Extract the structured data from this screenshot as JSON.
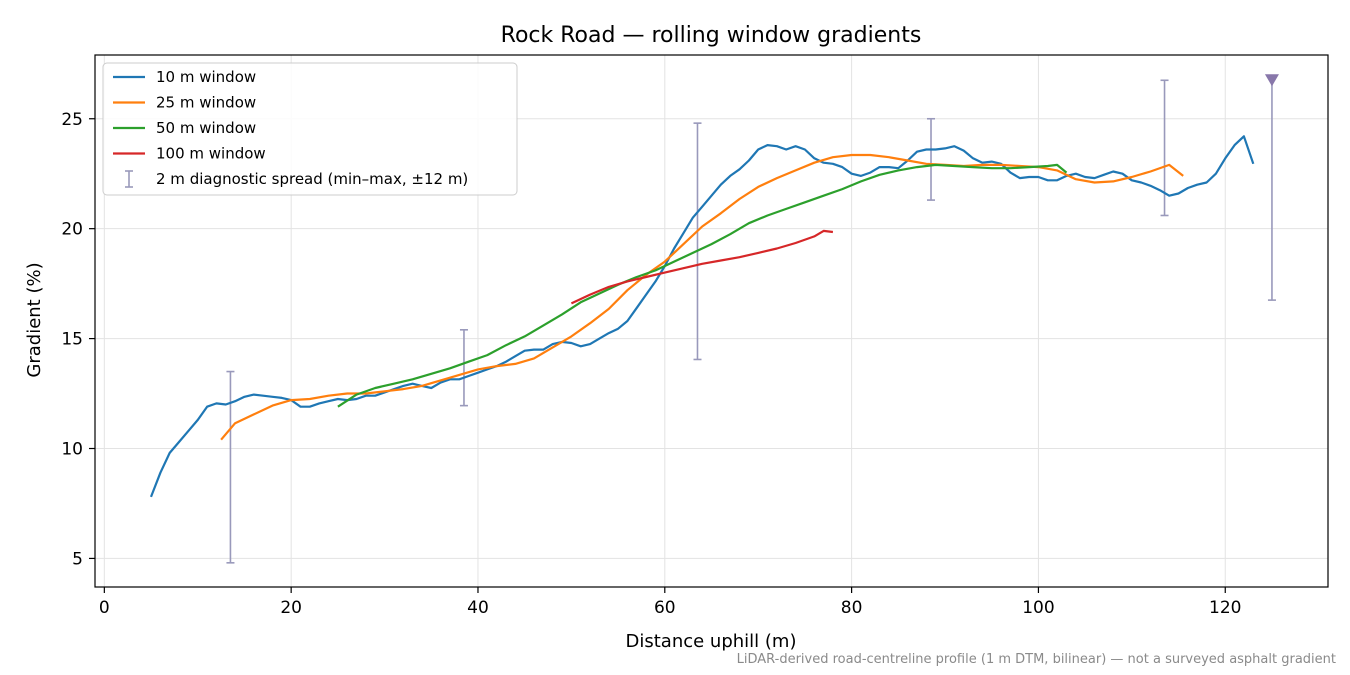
{
  "chart_data": {
    "type": "line",
    "title": "Rock Road — rolling window gradients",
    "xlabel": "Distance uphill (m)",
    "ylabel": "Gradient (%)",
    "xlim": [
      -1,
      131
    ],
    "ylim": [
      3.7,
      27.9
    ],
    "x_ticks": [
      0,
      20,
      40,
      60,
      80,
      100,
      120
    ],
    "y_ticks": [
      5,
      10,
      15,
      20,
      25
    ],
    "grid": true,
    "legend_position": "top-left",
    "series": [
      {
        "name": "10 m window",
        "color": "#1f77b4",
        "x": [
          5,
          6,
          7,
          8,
          9,
          10,
          11,
          12,
          13,
          14,
          15,
          16,
          17,
          18,
          19,
          20,
          21,
          22,
          23,
          24,
          25,
          26,
          27,
          28,
          29,
          30,
          31,
          32,
          33,
          34,
          35,
          36,
          37,
          38,
          39,
          40,
          41,
          42,
          43,
          44,
          45,
          46,
          47,
          48,
          49,
          50,
          51,
          52,
          53,
          54,
          55,
          56,
          57,
          58,
          59,
          60,
          61,
          62,
          63,
          64,
          65,
          66,
          67,
          68,
          69,
          70,
          71,
          72,
          73,
          74,
          75,
          76,
          77,
          78,
          79,
          80,
          81,
          82,
          83,
          84,
          85,
          86,
          87,
          88,
          89,
          90,
          91,
          92,
          93,
          94,
          95,
          96,
          97,
          98,
          99,
          100,
          101,
          102,
          103,
          104,
          105,
          106,
          107,
          108,
          109,
          110,
          111,
          112,
          113,
          114,
          115,
          116,
          117,
          118,
          119,
          120,
          121,
          122,
          123
        ],
        "y": [
          7.8,
          8.9,
          9.8,
          10.3,
          10.8,
          11.3,
          11.9,
          12.05,
          12.0,
          12.15,
          12.35,
          12.45,
          12.4,
          12.35,
          12.3,
          12.2,
          11.9,
          11.9,
          12.05,
          12.15,
          12.25,
          12.2,
          12.25,
          12.4,
          12.4,
          12.55,
          12.7,
          12.85,
          12.95,
          12.85,
          12.75,
          13.0,
          13.15,
          13.15,
          13.3,
          13.45,
          13.6,
          13.75,
          13.95,
          14.2,
          14.45,
          14.5,
          14.5,
          14.75,
          14.85,
          14.8,
          14.65,
          14.75,
          15.0,
          15.25,
          15.45,
          15.8,
          16.4,
          17.0,
          17.6,
          18.3,
          19.1,
          19.8,
          20.5,
          21.0,
          21.5,
          22.0,
          22.4,
          22.7,
          23.1,
          23.6,
          23.8,
          23.75,
          23.6,
          23.75,
          23.6,
          23.2,
          23.0,
          22.95,
          22.8,
          22.5,
          22.4,
          22.55,
          22.8,
          22.8,
          22.75,
          23.1,
          23.5,
          23.6,
          23.6,
          23.65,
          23.75,
          23.55,
          23.2,
          23.0,
          23.05,
          22.95,
          22.55,
          22.3,
          22.35,
          22.35,
          22.2,
          22.2,
          22.4,
          22.5,
          22.35,
          22.3,
          22.45,
          22.6,
          22.5,
          22.2,
          22.1,
          21.95,
          21.75,
          21.5,
          21.6,
          21.85,
          22.0,
          22.1,
          22.5,
          23.2,
          23.8,
          24.2,
          22.95
        ]
      },
      {
        "name": "25 m window",
        "color": "#ff7f0e",
        "x": [
          12.5,
          14,
          16,
          18,
          20,
          22,
          24,
          26,
          28,
          30,
          32,
          34,
          36,
          38,
          40,
          42,
          44,
          46,
          48,
          50,
          52,
          54,
          56,
          58,
          60,
          62,
          64,
          66,
          68,
          70,
          72,
          74,
          76,
          78,
          80,
          82,
          84,
          86,
          88,
          90,
          92,
          94,
          96,
          98,
          100,
          102,
          104,
          106,
          108,
          110,
          112,
          114,
          115.5
        ],
        "y": [
          10.4,
          11.15,
          11.55,
          11.95,
          12.2,
          12.25,
          12.4,
          12.5,
          12.5,
          12.6,
          12.7,
          12.85,
          13.1,
          13.35,
          13.6,
          13.75,
          13.85,
          14.1,
          14.6,
          15.1,
          15.7,
          16.35,
          17.2,
          17.9,
          18.5,
          19.3,
          20.1,
          20.7,
          21.35,
          21.9,
          22.3,
          22.65,
          23.0,
          23.25,
          23.35,
          23.35,
          23.25,
          23.1,
          22.95,
          22.9,
          22.85,
          22.9,
          22.9,
          22.85,
          22.8,
          22.65,
          22.25,
          22.1,
          22.15,
          22.35,
          22.6,
          22.9,
          22.4
        ]
      },
      {
        "name": "50 m window",
        "color": "#2ca02c",
        "x": [
          25,
          27,
          29,
          31,
          33,
          35,
          37,
          39,
          41,
          43,
          45,
          47,
          49,
          51,
          53,
          55,
          57,
          59,
          61,
          63,
          65,
          67,
          69,
          71,
          73,
          75,
          77,
          79,
          81,
          83,
          85,
          87,
          89,
          91,
          93,
          95,
          97,
          99,
          101,
          102,
          103
        ],
        "y": [
          11.9,
          12.45,
          12.75,
          12.95,
          13.15,
          13.4,
          13.65,
          13.95,
          14.25,
          14.7,
          15.1,
          15.6,
          16.1,
          16.65,
          17.05,
          17.45,
          17.8,
          18.1,
          18.5,
          18.9,
          19.3,
          19.75,
          20.25,
          20.6,
          20.9,
          21.2,
          21.5,
          21.8,
          22.15,
          22.45,
          22.65,
          22.8,
          22.9,
          22.85,
          22.8,
          22.75,
          22.75,
          22.8,
          22.85,
          22.9,
          22.55
        ]
      },
      {
        "name": "100 m window",
        "color": "#d62728",
        "x": [
          50,
          52,
          54,
          56,
          58,
          60,
          62,
          64,
          66,
          68,
          70,
          72,
          74,
          76,
          77,
          78
        ],
        "y": [
          16.6,
          17.0,
          17.35,
          17.6,
          17.8,
          18.0,
          18.2,
          18.4,
          18.55,
          18.7,
          18.9,
          19.1,
          19.35,
          19.65,
          19.9,
          19.85
        ]
      }
    ],
    "error_bars": {
      "name": "2 m diagnostic spread (min–max, ±12 m)",
      "color": "#9999bb",
      "points": [
        {
          "x": 13.5,
          "low": 4.8,
          "high": 13.5
        },
        {
          "x": 38.5,
          "low": 11.95,
          "high": 15.4
        },
        {
          "x": 63.5,
          "low": 14.05,
          "high": 24.8
        },
        {
          "x": 88.5,
          "low": 21.3,
          "high": 25.0
        },
        {
          "x": 113.5,
          "low": 20.6,
          "high": 26.75
        },
        {
          "x": 125,
          "low": 16.75,
          "high": 26.75,
          "clipped_top": true
        }
      ],
      "clip_marker_color": "#8877aa"
    },
    "caption": "LiDAR-derived road-centreline profile (1 m DTM, bilinear) — not a surveyed asphalt gradient"
  }
}
